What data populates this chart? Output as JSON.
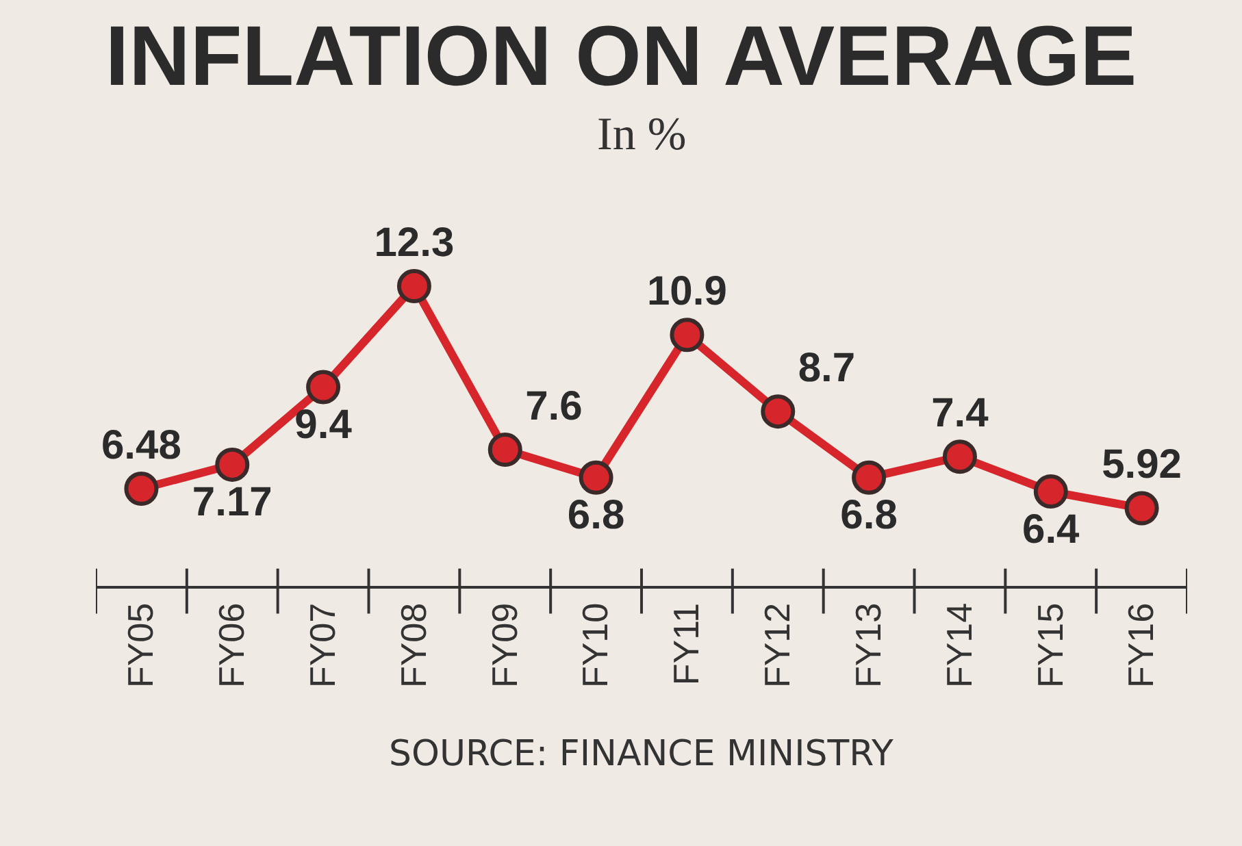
{
  "chart_data": {
    "type": "line",
    "title": "INFLATION ON AVERAGE",
    "subtitle": "In %",
    "categories": [
      "FY05",
      "FY06",
      "FY07",
      "FY08",
      "FY09",
      "FY10",
      "FY11",
      "FY12",
      "FY13",
      "FY14",
      "FY15",
      "FY16"
    ],
    "values": [
      6.48,
      7.17,
      9.4,
      12.3,
      7.6,
      6.8,
      10.9,
      8.7,
      6.8,
      7.4,
      6.4,
      5.92
    ],
    "color": "#d7262b",
    "marker": "circle",
    "line_style": "solid",
    "data_labels": true,
    "annotations": [
      "SOURCE: FINANCE MINISTRY"
    ]
  }
}
